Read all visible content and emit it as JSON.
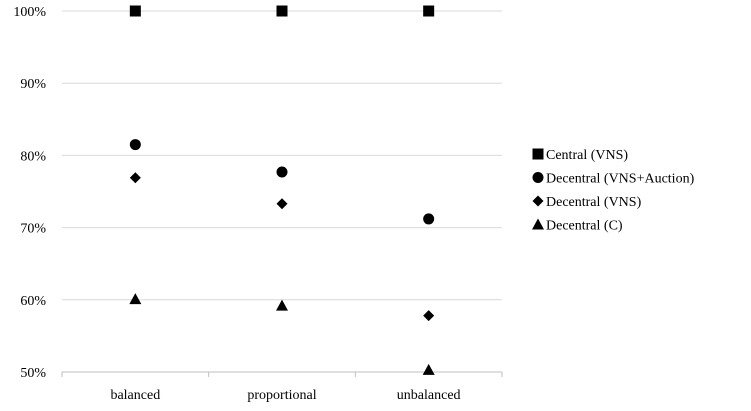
{
  "chart_data": {
    "type": "scatter",
    "categories": [
      "balanced",
      "proportional",
      "unbalanced"
    ],
    "ylim": [
      50,
      100
    ],
    "yticks": [
      50,
      60,
      70,
      80,
      90,
      100
    ],
    "ytick_labels": [
      "50%",
      "60%",
      "70%",
      "80%",
      "90%",
      "100%"
    ],
    "grid": true,
    "legend_position": "right",
    "series": [
      {
        "name": "Central (VNS)",
        "marker": "square",
        "values": [
          100,
          100,
          100
        ]
      },
      {
        "name": "Decentral (VNS+Auction)",
        "marker": "circle",
        "values": [
          81.5,
          77.7,
          71.2
        ]
      },
      {
        "name": "Decentral (VNS)",
        "marker": "diamond",
        "values": [
          76.9,
          73.3,
          57.8
        ]
      },
      {
        "name": "Decentral (C)",
        "marker": "triangle",
        "values": [
          60.1,
          59.2,
          50.3
        ]
      }
    ],
    "colors": {
      "marker": "#000000",
      "gridline": "#d9d9d9",
      "axis": "#bfbfbf"
    }
  }
}
